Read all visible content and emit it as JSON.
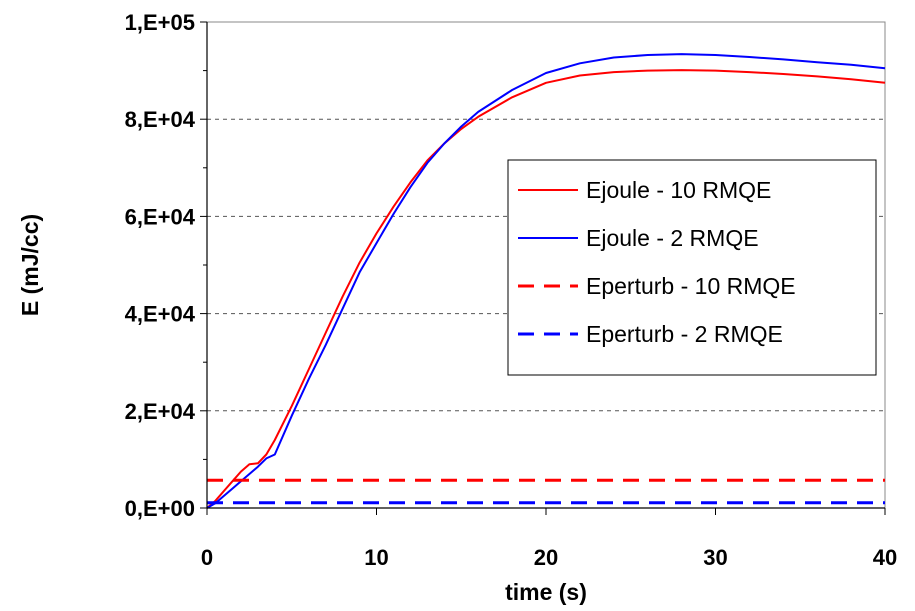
{
  "chart_data": {
    "type": "line",
    "title": "",
    "xlabel": "time (s)",
    "ylabel": "E (mJ/cc)",
    "xlim": [
      0,
      40
    ],
    "ylim": [
      0,
      100000
    ],
    "x_ticks": [
      "0",
      "10",
      "20",
      "30",
      "40"
    ],
    "y_ticks": [
      "0,E+00",
      "2,E+04",
      "4,E+04",
      "6,E+04",
      "8,E+04",
      "1,E+05"
    ],
    "grid": "horizontal dashed",
    "legend_position": "right",
    "series": [
      {
        "name": "Ejoule - 10 RMQE",
        "color": "#ff0000",
        "dash": "solid",
        "x": [
          0,
          0.5,
          1,
          1.5,
          2,
          2.5,
          3,
          3.5,
          4,
          5,
          6,
          7,
          8,
          9,
          10,
          11,
          12,
          13,
          14,
          15,
          16,
          18,
          20,
          22,
          24,
          26,
          28,
          30,
          32,
          34,
          36,
          38,
          40
        ],
        "y": [
          0,
          1500,
          3500,
          5500,
          7500,
          9000,
          9200,
          11000,
          14000,
          21000,
          28500,
          36000,
          43500,
          50500,
          56500,
          62000,
          67000,
          71500,
          75000,
          78000,
          80500,
          84500,
          87500,
          89000,
          89700,
          90000,
          90100,
          90000,
          89700,
          89300,
          88800,
          88200,
          87500
        ]
      },
      {
        "name": "Ejoule - 2 RMQE",
        "color": "#0000ff",
        "dash": "solid",
        "x": [
          0,
          0.5,
          1,
          1.5,
          2,
          2.5,
          3,
          3.5,
          4,
          5,
          6,
          7,
          8,
          9,
          10,
          11,
          12,
          13,
          14,
          15,
          16,
          18,
          20,
          22,
          24,
          26,
          28,
          30,
          32,
          34,
          36,
          38,
          40
        ],
        "y": [
          0,
          1000,
          2500,
          4000,
          5500,
          7000,
          8500,
          10200,
          11000,
          19000,
          26500,
          33500,
          41000,
          48500,
          54500,
          60500,
          66000,
          71000,
          75000,
          78500,
          81500,
          86000,
          89500,
          91500,
          92700,
          93200,
          93400,
          93200,
          92800,
          92300,
          91700,
          91200,
          90500
        ]
      },
      {
        "name": "Eperturb - 10 RMQE",
        "color": "#ff0000",
        "dash": "dashed",
        "x": [
          0,
          40
        ],
        "y": [
          5700,
          5700
        ]
      },
      {
        "name": "Eperturb - 2 RMQE",
        "color": "#0000ff",
        "dash": "dashed",
        "x": [
          0,
          40
        ],
        "y": [
          1100,
          1100
        ]
      }
    ]
  }
}
